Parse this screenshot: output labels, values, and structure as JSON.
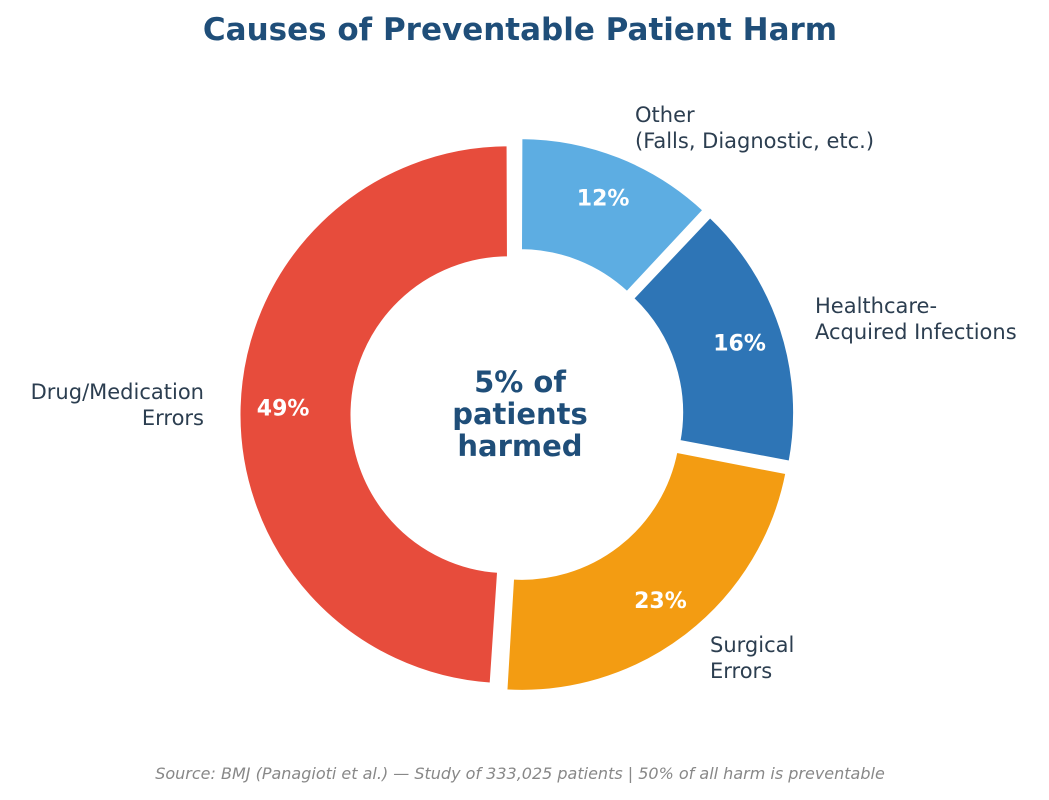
{
  "chart_data": {
    "type": "pie",
    "title": "Causes of Preventable Patient Harm",
    "center_label": [
      "5% of",
      "patients",
      "harmed"
    ],
    "categories": [
      {
        "label": [
          "Other",
          "(Falls, Diagnostic, etc.)"
        ],
        "value": 12,
        "value_label": "12%",
        "color": "#5DADE2"
      },
      {
        "label": [
          "Healthcare-",
          "Acquired Infections"
        ],
        "value": 16,
        "value_label": "16%",
        "color": "#2E75B6"
      },
      {
        "label": [
          "Surgical",
          "Errors"
        ],
        "value": 23,
        "value_label": "23%",
        "color": "#F39C12"
      },
      {
        "label": [
          "Drug/Medication",
          "Errors"
        ],
        "value": 49,
        "value_label": "49%",
        "color": "#E74C3C"
      }
    ],
    "source": "Source: BMJ (Panagioti et al.) — Study of 333,025 patients | 50% of all harm is preventable"
  },
  "colors": {
    "title": "#1F4E79",
    "center_text": "#1F4E79",
    "category_label": "#2C3E50",
    "slice_label": "#FFFFFF",
    "source": "#888888"
  }
}
